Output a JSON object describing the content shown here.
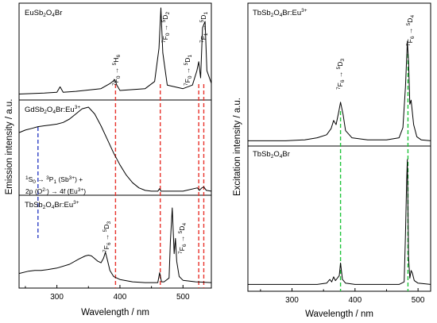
{
  "colors": {
    "spectrum": "#000000",
    "red_dashed": "#e8322b",
    "blue_dashed": "#2d3fc4",
    "green_dashed": "#1fc43a"
  },
  "chart_data": [
    {
      "type": "line",
      "name": "emission",
      "xlabel": "Wavelength / nm",
      "ylabel": "Emission intensity / a.u.",
      "xlim": [
        240,
        545
      ],
      "xticks": [
        300,
        400,
        500
      ],
      "ytick_labels": "none",
      "grid": false,
      "stacked_panels": [
        {
          "label": "EuSb2O4Br",
          "annotations": [
            "7F0 → 5H6",
            "7F0 → 5D2",
            "7F0 → 5D1",
            "7F1 → 5D1"
          ],
          "x": [
            240,
            280,
            300,
            305,
            310,
            330,
            370,
            385,
            392,
            395,
            400,
            440,
            455,
            462,
            465,
            468,
            475,
            500,
            515,
            522,
            525,
            528,
            531,
            535,
            538,
            545
          ],
          "y": [
            0.04,
            0.05,
            0.06,
            0.12,
            0.06,
            0.07,
            0.1,
            0.16,
            0.2,
            0.14,
            0.08,
            0.1,
            0.18,
            0.55,
            1.0,
            0.5,
            0.14,
            0.1,
            0.14,
            0.3,
            0.4,
            0.22,
            0.78,
            0.85,
            0.3,
            0.16
          ]
        },
        {
          "label": "GdSb2O4Br:Eu3+",
          "annotations": [
            "1S0 → 3P1 (Sb3+) +",
            "2p (O2-) → 4f (Eu3+)"
          ],
          "x": [
            240,
            250,
            260,
            270,
            280,
            290,
            300,
            310,
            320,
            330,
            340,
            350,
            360,
            370,
            380,
            390,
            400,
            410,
            420,
            430,
            440,
            450,
            460,
            463,
            465,
            470,
            500,
            523,
            526,
            530,
            533,
            537,
            545
          ],
          "y": [
            0.7,
            0.73,
            0.75,
            0.77,
            0.78,
            0.79,
            0.8,
            0.82,
            0.86,
            0.92,
            0.98,
            1.0,
            0.92,
            0.78,
            0.62,
            0.46,
            0.32,
            0.2,
            0.11,
            0.05,
            0.02,
            0.01,
            0.01,
            0.04,
            0.01,
            0.01,
            0.01,
            0.05,
            0.02,
            0.05,
            0.06,
            0.02,
            0.01
          ]
        },
        {
          "label": "TbSb2O4Br:Eu3+",
          "annotations": [
            "7F6 → 5D3",
            "7F6 → 5D4"
          ],
          "x": [
            240,
            255,
            265,
            275,
            285,
            300,
            320,
            335,
            345,
            350,
            355,
            365,
            370,
            374,
            377,
            380,
            384,
            390,
            400,
            420,
            440,
            460,
            463,
            466,
            470,
            478,
            480,
            483,
            486,
            488,
            490,
            494,
            500,
            520,
            545
          ],
          "y": [
            0.14,
            0.17,
            0.18,
            0.18,
            0.19,
            0.21,
            0.26,
            0.33,
            0.37,
            0.38,
            0.37,
            0.3,
            0.28,
            0.34,
            0.42,
            0.32,
            0.18,
            0.1,
            0.06,
            0.03,
            0.02,
            0.02,
            0.15,
            0.03,
            0.03,
            0.08,
            0.55,
            1.0,
            0.4,
            0.6,
            0.3,
            0.1,
            0.05,
            0.03,
            0.02
          ]
        }
      ],
      "reference_lines": [
        {
          "x": 393,
          "color": "red"
        },
        {
          "x": 464,
          "color": "red"
        },
        {
          "x": 525,
          "color": "red"
        },
        {
          "x": 533,
          "color": "red"
        },
        {
          "x": 270,
          "color": "blue"
        }
      ]
    },
    {
      "type": "line",
      "name": "excitation",
      "xlabel": "Wavelength / nm",
      "ylabel": "Excitation intensity / a.u.",
      "xlim": [
        230,
        520
      ],
      "xticks": [
        300,
        400,
        500
      ],
      "ytick_labels": "none",
      "grid": false,
      "stacked_panels": [
        {
          "label": "TbSb2O4Br:Eu3+",
          "annotations": [
            "7F6 → 5D3",
            "7F6 → 5D4"
          ],
          "x": [
            230,
            260,
            290,
            320,
            340,
            355,
            362,
            366,
            370,
            374,
            377,
            381,
            385,
            395,
            420,
            450,
            470,
            476,
            480,
            483,
            485,
            487,
            489,
            493,
            498,
            505,
            520
          ],
          "y": [
            0.02,
            0.02,
            0.02,
            0.03,
            0.05,
            0.08,
            0.14,
            0.22,
            0.18,
            0.3,
            0.4,
            0.28,
            0.12,
            0.05,
            0.03,
            0.03,
            0.05,
            0.15,
            0.55,
            1.0,
            0.8,
            0.38,
            0.42,
            0.18,
            0.06,
            0.03,
            0.02
          ]
        },
        {
          "label": "TbSb2O4Br",
          "annotations": [],
          "x": [
            230,
            300,
            340,
            355,
            360,
            363,
            366,
            369,
            372,
            375,
            377,
            380,
            385,
            400,
            440,
            470,
            478,
            480,
            482,
            483,
            485,
            487,
            489,
            491,
            494,
            500,
            520
          ],
          "y": [
            0.01,
            0.01,
            0.01,
            0.02,
            0.05,
            0.03,
            0.07,
            0.04,
            0.06,
            0.08,
            0.18,
            0.05,
            0.02,
            0.01,
            0.01,
            0.01,
            0.03,
            0.4,
            0.85,
            1.0,
            0.22,
            0.06,
            0.12,
            0.1,
            0.04,
            0.02,
            0.01
          ]
        }
      ],
      "reference_lines": [
        {
          "x": 377,
          "color": "green"
        },
        {
          "x": 484,
          "color": "green"
        }
      ]
    }
  ]
}
